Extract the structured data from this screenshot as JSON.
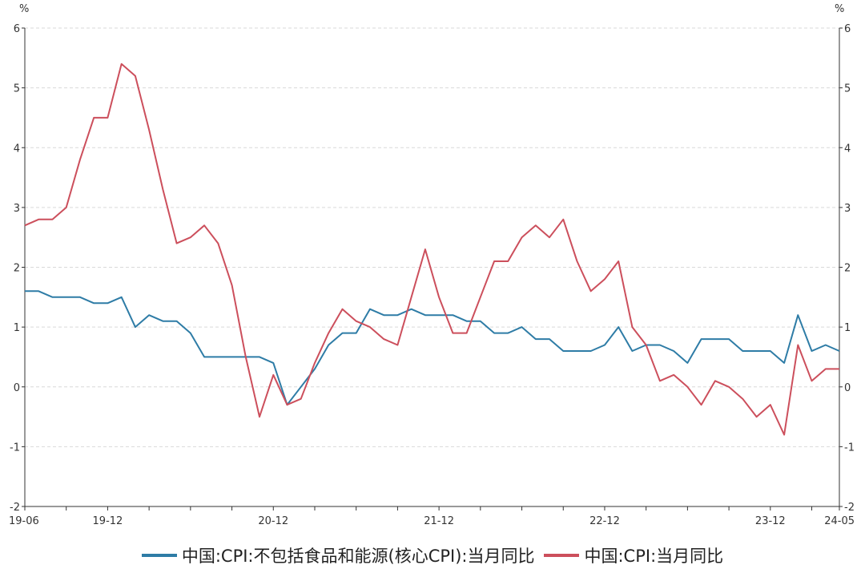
{
  "chart_data": {
    "type": "line",
    "y_unit_left": "%",
    "y_unit_right": "%",
    "ylim": [
      -2,
      6
    ],
    "yticks": [
      -2,
      -1,
      0,
      1,
      2,
      3,
      4,
      5,
      6
    ],
    "x": [
      "19-06",
      "19-07",
      "19-08",
      "19-09",
      "19-10",
      "19-11",
      "19-12",
      "20-01",
      "20-02",
      "20-03",
      "20-04",
      "20-05",
      "20-06",
      "20-07",
      "20-08",
      "20-09",
      "20-10",
      "20-11",
      "20-12",
      "21-01",
      "21-02",
      "21-03",
      "21-04",
      "21-05",
      "21-06",
      "21-07",
      "21-08",
      "21-09",
      "21-10",
      "21-11",
      "21-12",
      "22-01",
      "22-02",
      "22-03",
      "22-04",
      "22-05",
      "22-06",
      "22-07",
      "22-08",
      "22-09",
      "22-10",
      "22-11",
      "22-12",
      "23-01",
      "23-02",
      "23-03",
      "23-04",
      "23-05",
      "23-06",
      "23-07",
      "23-08",
      "23-09",
      "23-10",
      "23-11",
      "23-12",
      "24-01",
      "24-02",
      "24-03",
      "24-04",
      "24-05"
    ],
    "xtick_labels": [
      "19-06",
      "19-12",
      "20-12",
      "21-12",
      "22-12",
      "23-12",
      "24-05"
    ],
    "grid": true,
    "legend_position": "bottom",
    "series": [
      {
        "name": "中国:CPI:不包括食品和能源(核心CPI):当月同比",
        "color": "#2e7ca6",
        "values": [
          1.6,
          1.6,
          1.5,
          1.5,
          1.5,
          1.4,
          1.4,
          1.5,
          1.0,
          1.2,
          1.1,
          1.1,
          0.9,
          0.5,
          0.5,
          0.5,
          0.5,
          0.5,
          0.4,
          -0.3,
          0.0,
          0.3,
          0.7,
          0.9,
          0.9,
          1.3,
          1.2,
          1.2,
          1.3,
          1.2,
          1.2,
          1.2,
          1.1,
          1.1,
          0.9,
          0.9,
          1.0,
          0.8,
          0.8,
          0.6,
          0.6,
          0.6,
          0.7,
          1.0,
          0.6,
          0.7,
          0.7,
          0.6,
          0.4,
          0.8,
          0.8,
          0.8,
          0.6,
          0.6,
          0.6,
          0.4,
          1.2,
          0.6,
          0.7,
          0.6
        ]
      },
      {
        "name": "中国:CPI:当月同比",
        "color": "#cc4f5c",
        "values": [
          2.7,
          2.8,
          2.8,
          3.0,
          3.8,
          4.5,
          4.5,
          5.4,
          5.2,
          4.3,
          3.3,
          2.4,
          2.5,
          2.7,
          2.4,
          1.7,
          0.5,
          -0.5,
          0.2,
          -0.3,
          -0.2,
          0.4,
          0.9,
          1.3,
          1.1,
          1.0,
          0.8,
          0.7,
          1.5,
          2.3,
          1.5,
          0.9,
          0.9,
          1.5,
          2.1,
          2.1,
          2.5,
          2.7,
          2.5,
          2.8,
          2.1,
          1.6,
          1.8,
          2.1,
          1.0,
          0.7,
          0.1,
          0.2,
          0.0,
          -0.3,
          0.1,
          0.0,
          -0.2,
          -0.5,
          -0.3,
          -0.8,
          0.7,
          0.1,
          0.3,
          0.3
        ]
      }
    ]
  }
}
